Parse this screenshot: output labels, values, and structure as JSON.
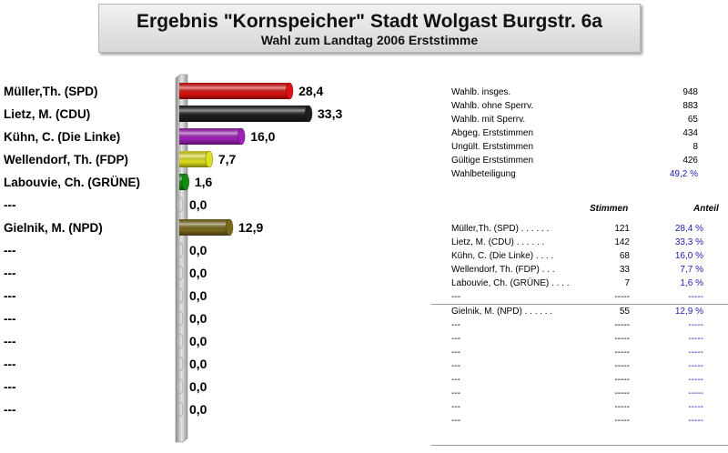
{
  "header": {
    "title": "Ergebnis \"Kornspeicher\" Stadt Wolgast Burgstr. 6a",
    "subtitle": "Wahl zum Landtag 2006 Erststimme"
  },
  "chart_data": {
    "type": "bar",
    "orientation": "horizontal",
    "categories": [
      "Müller,Th. (SPD)",
      "Lietz, M. (CDU)",
      "Kühn, C. (Die Linke)",
      "Wellendorf, Th. (FDP)",
      "Labouvie, Ch. (GRÜNE)",
      "---",
      "Gielnik, M. (NPD)",
      "---",
      "---",
      "---",
      "---",
      "---",
      "---",
      "---",
      "---"
    ],
    "values": [
      28.4,
      33.3,
      16.0,
      7.7,
      1.6,
      0.0,
      12.9,
      0.0,
      0.0,
      0.0,
      0.0,
      0.0,
      0.0,
      0.0,
      0.0
    ],
    "value_labels": [
      "28,4",
      "33,3",
      "16,0",
      "7,7",
      "1,6",
      "0,0",
      "12,9",
      "0,0",
      "0,0",
      "0,0",
      "0,0",
      "0,0",
      "0,0",
      "0,0",
      "0,0"
    ],
    "colors": [
      "#dd1111",
      "#1e1e1e",
      "#a020b8",
      "#e0e020",
      "#128a12",
      "#cccccc",
      "#78681a",
      "#cccccc",
      "#cccccc",
      "#cccccc",
      "#cccccc",
      "#cccccc",
      "#cccccc",
      "#cccccc",
      "#cccccc"
    ],
    "title": "",
    "xlabel": "",
    "ylabel": "",
    "xlim": [
      0,
      33.3
    ]
  },
  "stats": [
    {
      "label": "Wahlb. insges.",
      "value": "948"
    },
    {
      "label": "Wahlb. ohne Sperrv.",
      "value": "883"
    },
    {
      "label": "Wahlb. mit Sperrv.",
      "value": "65"
    },
    {
      "label": "Abgeg. Erststimmen",
      "value": "434"
    },
    {
      "label": "Ungült. Erststimmen",
      "value": "8"
    },
    {
      "label": "Gültige Erststimmen",
      "value": "426"
    },
    {
      "label": "Wahlbeteiligung",
      "value": "49,2 %"
    }
  ],
  "table": {
    "col_stimmen": "Stimmen",
    "col_anteil": "Anteil",
    "rows": [
      {
        "name": "Müller,Th. (SPD)",
        "dots": " . . . . . .",
        "stimmen": "121",
        "anteil": "28,4 %"
      },
      {
        "name": "Lietz, M. (CDU)",
        "dots": " . . . . . .",
        "stimmen": "142",
        "anteil": "33,3 %"
      },
      {
        "name": "Kühn, C. (Die Linke)",
        "dots": " . . . .",
        "stimmen": "68",
        "anteil": "16,0 %"
      },
      {
        "name": "Wellendorf, Th. (FDP)",
        "dots": " . . .",
        "stimmen": "33",
        "anteil": "7,7 %"
      },
      {
        "name": "Labouvie, Ch. (GRÜNE)",
        "dots": " . . . .",
        "stimmen": "7",
        "anteil": "1,6 %"
      },
      {
        "name": "---",
        "dots": "",
        "stimmen": "-----",
        "anteil": "-----"
      },
      {
        "name": "Gielnik, M. (NPD)",
        "dots": " . . . . . .",
        "stimmen": "55",
        "anteil": "12,9 %"
      },
      {
        "name": "---",
        "dots": "",
        "stimmen": "-----",
        "anteil": "-----"
      },
      {
        "name": "---",
        "dots": "",
        "stimmen": "-----",
        "anteil": "-----"
      },
      {
        "name": "---",
        "dots": "",
        "stimmen": "-----",
        "anteil": "-----"
      },
      {
        "name": "---",
        "dots": "",
        "stimmen": "-----",
        "anteil": "-----"
      },
      {
        "name": "---",
        "dots": "",
        "stimmen": "-----",
        "anteil": "-----"
      },
      {
        "name": "---",
        "dots": "",
        "stimmen": "-----",
        "anteil": "-----"
      },
      {
        "name": "---",
        "dots": "",
        "stimmen": "-----",
        "anteil": "-----"
      },
      {
        "name": "---",
        "dots": "",
        "stimmen": "-----",
        "anteil": "-----"
      }
    ]
  }
}
